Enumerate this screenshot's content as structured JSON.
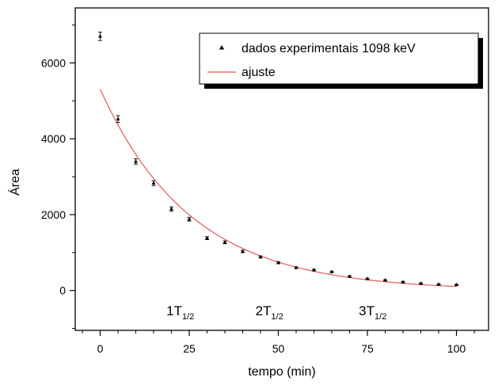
{
  "chart_data": {
    "type": "scatter",
    "xlabel": "tempo (min)",
    "ylabel": "Área",
    "xlim": [
      -7,
      109
    ],
    "ylim": [
      -1050,
      7450
    ],
    "xticks": [
      0,
      25,
      50,
      75,
      100
    ],
    "yticks": [
      0,
      2000,
      4000,
      6000
    ],
    "x_tick_labels": [
      "0",
      "25",
      "50",
      "75",
      "100"
    ],
    "y_tick_labels": [
      "0",
      "2000",
      "4000",
      "6000"
    ],
    "grid": false,
    "legend_position": "top-right",
    "series": [
      {
        "name": "dados experimentais 1098 keV",
        "kind": "points",
        "marker": "triangle",
        "color": "#000000",
        "x": [
          0,
          5,
          10,
          15,
          20,
          25,
          30,
          35,
          40,
          45,
          50,
          55,
          60,
          65,
          70,
          75,
          80,
          85,
          90,
          95,
          100
        ],
        "y": [
          6700,
          4520,
          3400,
          2830,
          2150,
          1880,
          1380,
          1270,
          1030,
          880,
          730,
          600,
          540,
          490,
          370,
          310,
          270,
          220,
          185,
          160,
          150
        ],
        "err": [
          110,
          90,
          70,
          65,
          55,
          50,
          40,
          38,
          32,
          28,
          25,
          22,
          20,
          20,
          18,
          16,
          15,
          14,
          13,
          12,
          12
        ]
      },
      {
        "name": "ajuste",
        "kind": "fit",
        "color": "#e05a5a",
        "model": "exponential decay",
        "amplitude": 5310,
        "half_life": 17.7
      }
    ],
    "annotations": [
      {
        "main": "1T",
        "sub": "1/2",
        "x": 22.5,
        "y": -650
      },
      {
        "main": "2T",
        "sub": "1/2",
        "x": 47.5,
        "y": -650
      },
      {
        "main": "3T",
        "sub": "1/2",
        "x": 76.5,
        "y": -650
      }
    ]
  }
}
